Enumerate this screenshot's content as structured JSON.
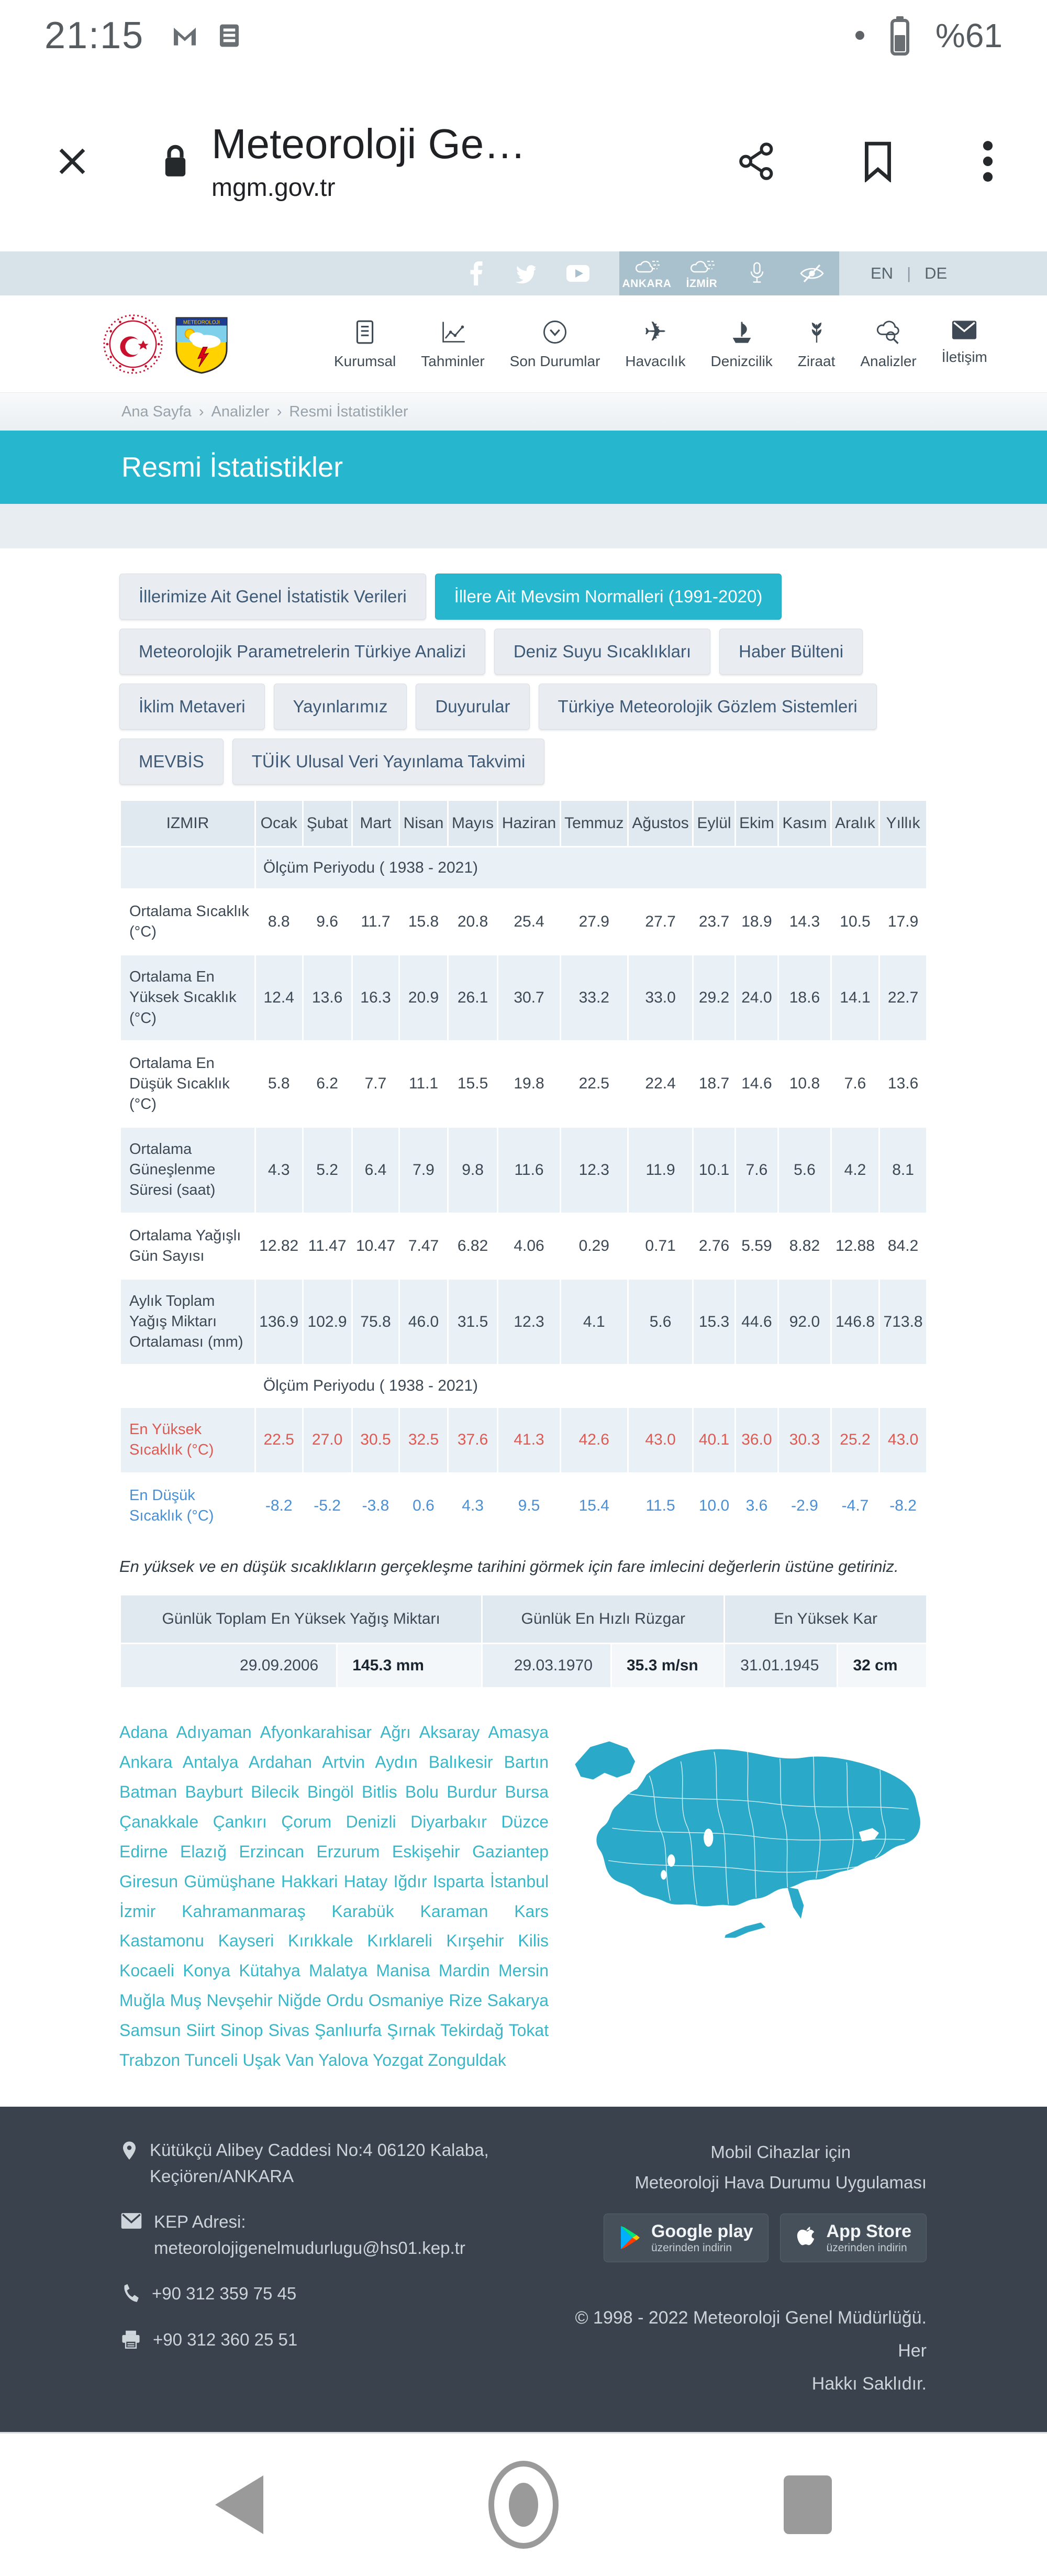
{
  "status_bar": {
    "time": "21:15",
    "battery": "%61"
  },
  "browser": {
    "title": "Meteoroloji Ge…",
    "url": "mgm.gov.tr"
  },
  "topbar": {
    "stations": [
      {
        "label": "ANKARA"
      },
      {
        "label": "İZMİR"
      }
    ],
    "lang": {
      "en": "EN",
      "sep": "|",
      "de": "DE"
    }
  },
  "nav": {
    "items": [
      {
        "label": "Kurumsal",
        "slug": "kurumsal",
        "icon": "document-icon"
      },
      {
        "label": "Tahminler",
        "slug": "tahminler",
        "icon": "chart-icon"
      },
      {
        "label": "Son Durumlar",
        "slug": "son-durumlar",
        "icon": "circle-chevron-icon"
      },
      {
        "label": "Havacılık",
        "slug": "havacilik",
        "icon": "plane-icon"
      },
      {
        "label": "Denizcilik",
        "slug": "denizcilik",
        "icon": "ship-icon"
      },
      {
        "label": "Ziraat",
        "slug": "ziraat",
        "icon": "wheat-icon"
      },
      {
        "label": "Analizler",
        "slug": "analizler",
        "icon": "cloud-search-icon"
      },
      {
        "label": "İletişim",
        "slug": "iletisim",
        "icon": "envelope-icon"
      }
    ]
  },
  "breadcrumb": {
    "sep": "›",
    "parts": [
      "Ana Sayfa",
      "Analizler",
      "Resmi İstatistikler"
    ]
  },
  "page": {
    "title": "Resmi İstatistikler"
  },
  "filters": {
    "rows": [
      [
        {
          "label": "İllerimize Ait Genel İstatistik Verileri",
          "active": false
        },
        {
          "label": "İllere Ait Mevsim Normalleri (1991-2020)",
          "active": true
        }
      ],
      [
        {
          "label": "Meteorolojik Parametrelerin Türkiye Analizi",
          "active": false
        },
        {
          "label": "Deniz Suyu Sıcaklıkları",
          "active": false
        },
        {
          "label": "Haber Bülteni",
          "active": false
        }
      ],
      [
        {
          "label": "İklim Metaveri",
          "active": false
        },
        {
          "label": "Yayınlarımız",
          "active": false
        },
        {
          "label": "Duyurular",
          "active": false
        },
        {
          "label": "Türkiye Meteorolojik Gözlem Sistemleri",
          "active": false
        }
      ],
      [
        {
          "label": "MEVBİS",
          "active": false
        },
        {
          "label": "TÜİK Ulusal Veri Yayınlama Takvimi",
          "active": false
        }
      ]
    ]
  },
  "table": {
    "station": "IZMIR",
    "months": [
      "Ocak",
      "Şubat",
      "Mart",
      "Nisan",
      "Mayıs",
      "Haziran",
      "Temmuz",
      "Ağustos",
      "Eylül",
      "Ekim",
      "Kasım",
      "Aralık",
      "Yıllık"
    ],
    "rows": [
      {
        "type": "period",
        "label": "Ölçüm Periyodu ( 1938 - 2021)"
      },
      {
        "type": "data",
        "label": "Ortalama Sıcaklık (°C)",
        "values": [
          "8.8",
          "9.6",
          "11.7",
          "15.8",
          "20.8",
          "25.4",
          "27.9",
          "27.7",
          "23.7",
          "18.9",
          "14.3",
          "10.5",
          "17.9"
        ]
      },
      {
        "type": "data",
        "label": "Ortalama En Yüksek Sıcaklık (°C)",
        "values": [
          "12.4",
          "13.6",
          "16.3",
          "20.9",
          "26.1",
          "30.7",
          "33.2",
          "33.0",
          "29.2",
          "24.0",
          "18.6",
          "14.1",
          "22.7"
        ]
      },
      {
        "type": "data",
        "label": "Ortalama En Düşük Sıcaklık (°C)",
        "values": [
          "5.8",
          "6.2",
          "7.7",
          "11.1",
          "15.5",
          "19.8",
          "22.5",
          "22.4",
          "18.7",
          "14.6",
          "10.8",
          "7.6",
          "13.6"
        ]
      },
      {
        "type": "data",
        "label": "Ortalama Güneşlenme Süresi (saat)",
        "values": [
          "4.3",
          "5.2",
          "6.4",
          "7.9",
          "9.8",
          "11.6",
          "12.3",
          "11.9",
          "10.1",
          "7.6",
          "5.6",
          "4.2",
          "8.1"
        ]
      },
      {
        "type": "data",
        "label": "Ortalama Yağışlı Gün Sayısı",
        "values": [
          "12.82",
          "11.47",
          "10.47",
          "7.47",
          "6.82",
          "4.06",
          "0.29",
          "0.71",
          "2.76",
          "5.59",
          "8.82",
          "12.88",
          "84.2"
        ]
      },
      {
        "type": "data",
        "label": "Aylık Toplam Yağış Miktarı Ortalaması (mm)",
        "values": [
          "136.9",
          "102.9",
          "75.8",
          "46.0",
          "31.5",
          "12.3",
          "4.1",
          "5.6",
          "15.3",
          "44.6",
          "92.0",
          "146.8",
          "713.8"
        ]
      },
      {
        "type": "period",
        "label": "Ölçüm Periyodu ( 1938 - 2021)"
      },
      {
        "type": "data",
        "color": "red",
        "label": "En Yüksek Sıcaklık (°C)",
        "values": [
          "22.5",
          "27.0",
          "30.5",
          "32.5",
          "37.6",
          "41.3",
          "42.6",
          "43.0",
          "40.1",
          "36.0",
          "30.3",
          "25.2",
          "43.0"
        ]
      },
      {
        "type": "data",
        "color": "blue",
        "label": "En Düşük Sıcaklık (°C)",
        "values": [
          "-8.2",
          "-5.2",
          "-3.8",
          "0.6",
          "4.3",
          "9.5",
          "15.4",
          "11.5",
          "10.0",
          "3.6",
          "-2.9",
          "-4.7",
          "-8.2"
        ]
      }
    ]
  },
  "note": "En yüksek ve en düşük sıcaklıkların gerçekleşme tarihini görmek için fare imlecini değerlerin üstüne getiriniz.",
  "records": {
    "items": [
      {
        "title": "Günlük Toplam En Yüksek Yağış Miktarı",
        "date": "29.09.2006",
        "value": "145.3 mm"
      },
      {
        "title": "Günlük En Hızlı Rüzgar",
        "date": "29.03.1970",
        "value": "35.3 m/sn"
      },
      {
        "title": "En Yüksek Kar",
        "date": "31.01.1945",
        "value": "32 cm"
      }
    ]
  },
  "cities": [
    "Adana",
    "Adıyaman",
    "Afyonkarahisar",
    "Ağrı",
    "Aksaray",
    "Amasya",
    "Ankara",
    "Antalya",
    "Ardahan",
    "Artvin",
    "Aydın",
    "Balıkesir",
    "Bartın",
    "Batman",
    "Bayburt",
    "Bilecik",
    "Bingöl",
    "Bitlis",
    "Bolu",
    "Burdur",
    "Bursa",
    "Çanakkale",
    "Çankırı",
    "Çorum",
    "Denizli",
    "Diyarbakır",
    "Düzce",
    "Edirne",
    "Elazığ",
    "Erzincan",
    "Erzurum",
    "Eskişehir",
    "Gaziantep",
    "Giresun",
    "Gümüşhane",
    "Hakkari",
    "Hatay",
    "Iğdır",
    "Isparta",
    "İstanbul",
    "İzmir",
    "Kahramanmaraş",
    "Karabük",
    "Karaman",
    "Kars",
    "Kastamonu",
    "Kayseri",
    "Kırıkkale",
    "Kırklareli",
    "Kırşehir",
    "Kilis",
    "Kocaeli",
    "Konya",
    "Kütahya",
    "Malatya",
    "Manisa",
    "Mardin",
    "Mersin",
    "Muğla",
    "Muş",
    "Nevşehir",
    "Niğde",
    "Ordu",
    "Osmaniye",
    "Rize",
    "Sakarya",
    "Samsun",
    "Siirt",
    "Sinop",
    "Sivas",
    "Şanlıurfa",
    "Şırnak",
    "Tekirdağ",
    "Tokat",
    "Trabzon",
    "Tunceli",
    "Uşak",
    "Van",
    "Yalova",
    "Yozgat",
    "Zonguldak"
  ],
  "footer": {
    "address_line1": "Kütükçü Alibey Caddesi No:4 06120 Kalaba,",
    "address_line2": "Keçiören/ANKARA",
    "kep_label": "KEP Adresi:",
    "kep_value": "meteorolojigenelmudurlugu@hs01.kep.tr",
    "phone": "+90 312 359 75 45",
    "fax": "+90 312 360 25 51",
    "app_line1": "Mobil Cihazlar için",
    "app_line2": "Meteoroloji Hava Durumu Uygulaması",
    "badge_google": {
      "store": "Google play",
      "sub": "üzerinden indirin"
    },
    "badge_apple": {
      "store": "App Store",
      "sub": "üzerinden indirin"
    },
    "copyright1": "© 1998 - 2022 Meteoroloji Genel Müdürlüğü. Her",
    "copyright2": "Hakkı Saklıdır."
  },
  "colors": {
    "accent": "#26b6cd",
    "map": "#2aa9c9",
    "link": "#39b7c8",
    "footer_bg": "#3a434d",
    "record_high": "#dd5a52",
    "record_low": "#4a8fd3"
  }
}
